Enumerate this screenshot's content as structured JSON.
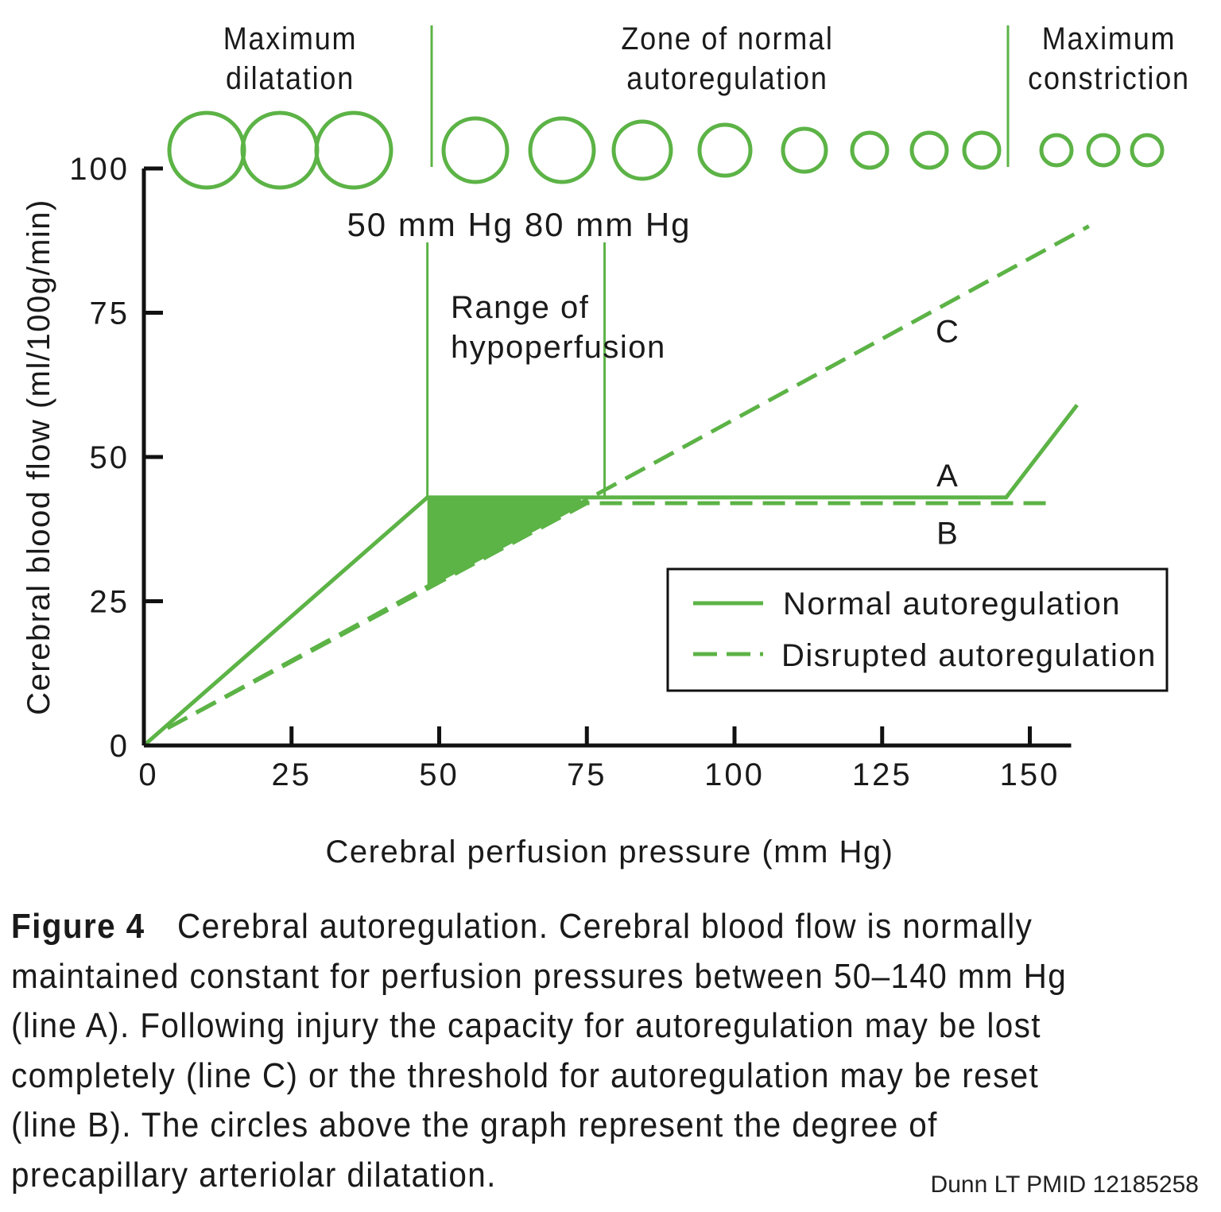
{
  "zones": {
    "max_dilatation": [
      "Maximum",
      "dilatation"
    ],
    "normal_zone": [
      "Zone of normal",
      "autoregulation"
    ],
    "max_constriction": [
      "Maximum",
      "constriction"
    ]
  },
  "chart_data": {
    "type": "line",
    "title": "",
    "xlabel": "Cerebral perfusion pressure (mm Hg)",
    "ylabel": "Cerebral blood flow (ml/100g/min)",
    "xlim": [
      0,
      157
    ],
    "ylim": [
      0,
      100
    ],
    "xticks": [
      0,
      25,
      50,
      75,
      100,
      125,
      150
    ],
    "yticks": [
      0,
      25,
      50,
      75,
      100
    ],
    "grid": false,
    "legend_position": "bottom-right",
    "series": [
      {
        "name": "Normal autoregulation",
        "style": "solid",
        "x": [
          0,
          48,
          146,
          158
        ],
        "y": [
          0,
          43,
          43,
          59
        ]
      },
      {
        "name": "Disrupted autoregulation",
        "style": "dashed",
        "x": [
          4,
          75,
          154
        ],
        "y": [
          3,
          42,
          42
        ]
      },
      {
        "name": "Disrupted autoregulation",
        "style": "dashed",
        "x": [
          4,
          160
        ],
        "y": [
          3,
          90
        ]
      }
    ],
    "line_labels": [
      {
        "text": "A",
        "x": 136,
        "y": 47
      },
      {
        "text": "B",
        "x": 136,
        "y": 37
      },
      {
        "text": "C",
        "x": 136,
        "y": 72
      }
    ],
    "reference_lines": [
      {
        "label": "50 mm Hg",
        "x": 48
      },
      {
        "label": "80 mm Hg",
        "x": 78
      }
    ],
    "shaded_region_label": [
      "Range of",
      "hypoperfusion"
    ],
    "legend": [
      "Normal autoregulation",
      "Disrupted autoregulation"
    ],
    "colors": {
      "line": "#5cb346",
      "axis": "#111111"
    }
  },
  "caption": {
    "label": "Figure 4",
    "text": "Cerebral autoregulation. Cerebral blood flow is normally maintained constant for perfusion pressures between 50–140 mm Hg (line A). Following injury the capacity for autoregulation may be lost completely (line C) or the threshold for autoregulation may be reset (line B). The circles above the graph represent the degree of precapillary arteriolar dilatation."
  },
  "credit": "Dunn LT  PMID 12185258"
}
